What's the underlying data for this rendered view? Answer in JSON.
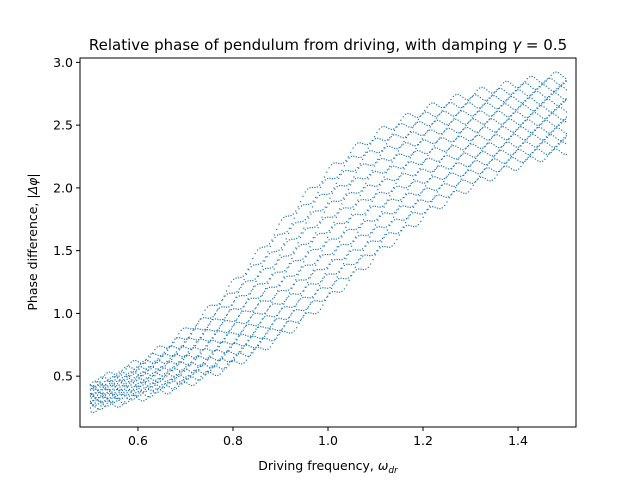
{
  "chart_data": {
    "type": "scatter",
    "title_prefix": "Relative phase of pendulum from driving, with damping ",
    "title_symbol": "γ",
    "title_suffix": " = 0.5",
    "xlabel_prefix": "Driving frequency, ",
    "xlabel_symbol": "ω",
    "xlabel_sub": "dr",
    "ylabel_prefix": "Phase difference, ",
    "ylabel_symbol": "|Δφ|",
    "xlim": [
      0.478,
      1.522
    ],
    "ylim": [
      0.095,
      3.035
    ],
    "xticks": [
      0.6,
      0.8,
      1.0,
      1.2,
      1.4
    ],
    "xtick_labels": [
      "0.6",
      "0.8",
      "1.0",
      "1.2",
      "1.4"
    ],
    "yticks": [
      0.5,
      1.0,
      1.5,
      2.0,
      2.5,
      3.0
    ],
    "ytick_labels": [
      "0.5",
      "1.0",
      "1.5",
      "2.0",
      "2.5",
      "3.0"
    ],
    "grid": false,
    "marker_color": "#1f77b4",
    "x_range": [
      0.5,
      1.5
    ],
    "phase_at_x_min": [
      0.24,
      0.44
    ],
    "phase_at_x_max": [
      2.3,
      2.9
    ]
  }
}
